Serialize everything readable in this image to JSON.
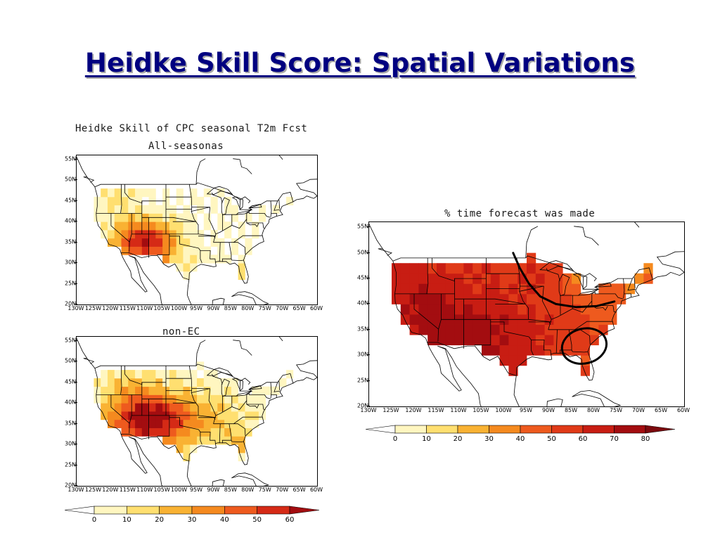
{
  "slide": {
    "title": "Heidke Skill Score: Spatial Variations"
  },
  "maps": {
    "all_seasons": {
      "title": "Heidke Skill of CPC seasonal T2m Fcst",
      "subtitle": "All-seasonas"
    },
    "non_ec": {
      "title": "non-EC"
    },
    "forecast_pct": {
      "title": "% time forecast was made"
    }
  },
  "axes": {
    "lat_labels": [
      "55N",
      "50N",
      "45N",
      "40N",
      "35N",
      "30N",
      "25N",
      "20N"
    ],
    "lon_labels": [
      "130W",
      "125W",
      "120W",
      "115W",
      "110W",
      "105W",
      "100W",
      "95W",
      "90W",
      "85W",
      "80W",
      "75W",
      "70W",
      "65W",
      "60W"
    ]
  },
  "colorbars": {
    "skill": {
      "labels": [
        "0",
        "10",
        "20",
        "30",
        "40",
        "50",
        "60"
      ],
      "colors": [
        "#fff6c0",
        "#ffdf70",
        "#f9b233",
        "#f58a1f",
        "#ee5a1e",
        "#d52a16",
        "#a30d10"
      ]
    },
    "forecast": {
      "labels": [
        "0",
        "10",
        "20",
        "30",
        "40",
        "50",
        "60",
        "70",
        "80"
      ],
      "colors": [
        "#fff6c0",
        "#ffdf70",
        "#f9b233",
        "#f58a1f",
        "#ee5a1e",
        "#e03a18",
        "#c81d13",
        "#a30d10",
        "#7d0a0e"
      ]
    }
  },
  "annotations": {
    "curve_color": "#000000",
    "ellipse_color": "#000000"
  }
}
